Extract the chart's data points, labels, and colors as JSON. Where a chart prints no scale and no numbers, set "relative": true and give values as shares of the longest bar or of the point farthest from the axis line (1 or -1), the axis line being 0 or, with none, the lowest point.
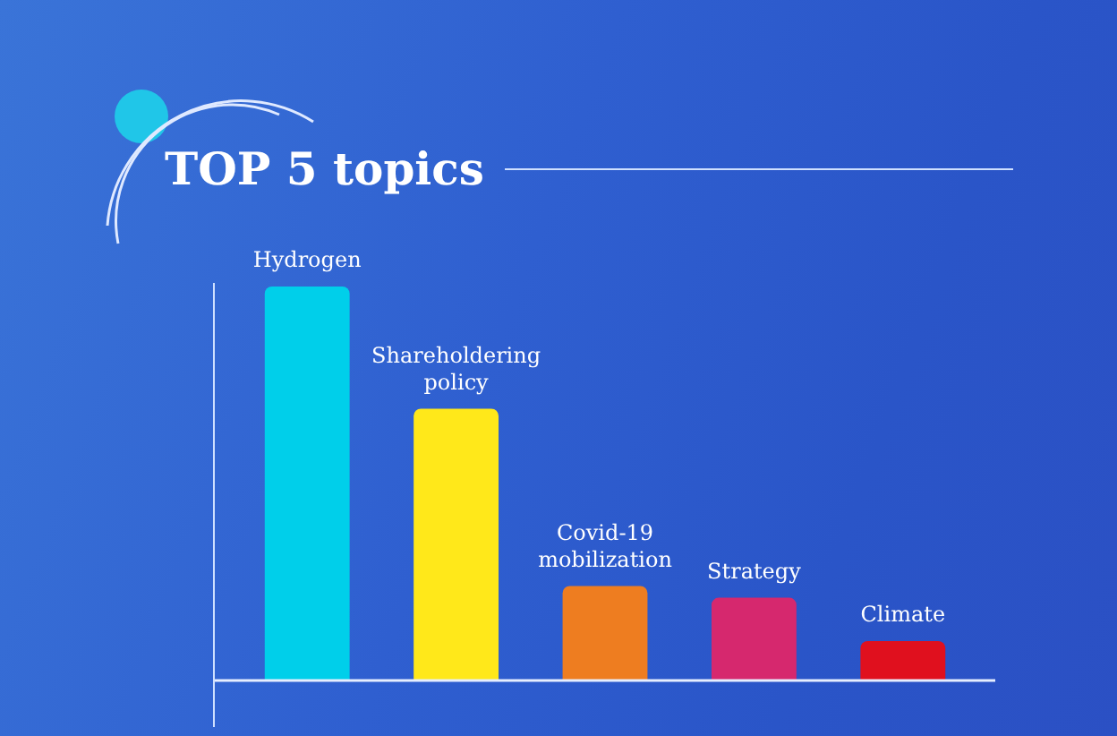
{
  "chart_data": {
    "type": "bar",
    "title": "TOP 5 topics",
    "relative": true,
    "categories": [
      "Hydrogen",
      "Shareholdering policy",
      "Covid-19 mobilization",
      "Strategy",
      "Climate"
    ],
    "values": [
      1,
      0.69,
      0.24,
      0.21,
      0.1
    ],
    "colors": [
      "#00cfea",
      "#ffe81a",
      "#ee7d20",
      "#d6286e",
      "#e0101e"
    ],
    "legend": false
  }
}
